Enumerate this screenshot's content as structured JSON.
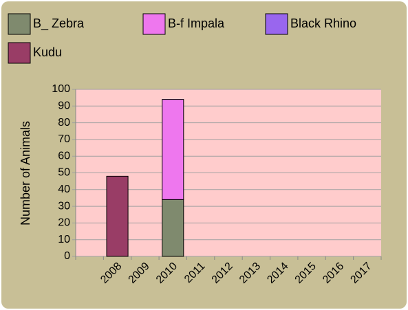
{
  "chart_data": {
    "type": "bar",
    "stacked": true,
    "y_label": "Number of Animals",
    "categories": [
      null,
      "2008",
      "2009",
      "2010",
      "2011",
      "2012",
      "2013",
      "2014",
      "2015",
      "2016",
      "2017"
    ],
    "series": [
      {
        "name": "B_ Zebra",
        "color": "#7f8a6e",
        "values": [
          0,
          0,
          0,
          34,
          0,
          0,
          0,
          0,
          0,
          0,
          0
        ]
      },
      {
        "name": "B-f Impala",
        "color": "#ee77ee",
        "values": [
          0,
          0,
          0,
          60,
          0,
          0,
          0,
          0,
          0,
          0,
          0
        ]
      },
      {
        "name": "Black Rhino",
        "color": "#9966ee",
        "values": [
          0,
          0,
          0,
          0,
          0,
          0,
          0,
          0,
          0,
          0,
          0
        ]
      },
      {
        "name": "Kudu",
        "color": "#993d66",
        "values": [
          0,
          48,
          0,
          0,
          0,
          0,
          0,
          0,
          0,
          0,
          0
        ]
      }
    ],
    "ylim": [
      0,
      100
    ],
    "yticks": [
      0,
      10,
      20,
      30,
      40,
      50,
      60,
      70,
      80,
      90,
      100
    ],
    "grid": true
  }
}
